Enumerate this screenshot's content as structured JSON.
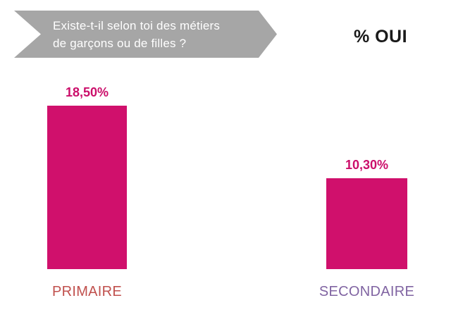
{
  "header": {
    "question_lines": [
      "Existe-t-il selon toi des métiers",
      "de garçons ou de filles ?"
    ],
    "right_label": "% OUI",
    "banner_color": "#a6a6a6",
    "banner_text_color": "#ffffff"
  },
  "chart_data": {
    "type": "bar",
    "title": "Existe-t-il selon toi des métiers de garçons ou de filles ?",
    "subtitle": "% OUI",
    "categories": [
      "PRIMAIRE",
      "SECONDAIRE"
    ],
    "values": [
      18.5,
      10.3
    ],
    "value_labels": [
      "18,50%",
      "10,30%"
    ],
    "unit": "%",
    "ylim": [
      0,
      20
    ],
    "grid": false,
    "legend": false,
    "axis_lines": false,
    "bar_color": "#d0106c",
    "value_label_color": "#cb0e6a",
    "category_colors": [
      "#c0504d",
      "#8064a2"
    ]
  }
}
